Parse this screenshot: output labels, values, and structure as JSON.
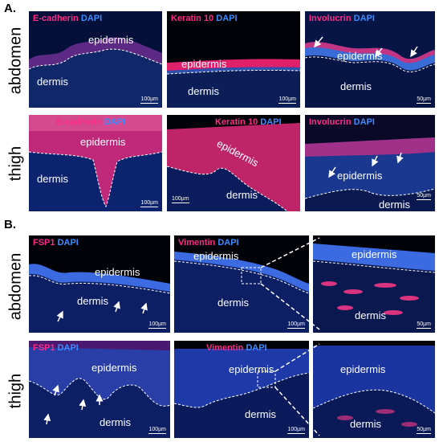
{
  "panel_a": {
    "label": "A.",
    "rows": [
      {
        "label": "abdomen",
        "tiles": [
          {
            "marker": "E-cadherin",
            "stain": "DAPI",
            "epidermis": "epidermis",
            "dermis": "dermis",
            "scale": "100µm"
          },
          {
            "marker": "Keratin 10",
            "stain": "DAPI",
            "epidermis": "epidermis",
            "dermis": "dermis",
            "scale": "100µm"
          },
          {
            "marker": "Involucrin",
            "stain": "DAPI",
            "epidermis": "epidermis",
            "dermis": "dermis",
            "scale": "50µm"
          }
        ]
      },
      {
        "label": "thigh",
        "tiles": [
          {
            "marker": "E-cadherin",
            "stain": "DAPI",
            "epidermis": "epidermis",
            "dermis": "dermis",
            "scale": "100µm"
          },
          {
            "marker": "Keratin 10",
            "stain": "DAPI",
            "epidermis": "epidermis",
            "dermis": "dermis",
            "scale": "100µm"
          },
          {
            "marker": "Involucrin",
            "stain": "DAPI",
            "epidermis": "epidermis",
            "dermis": "dermis",
            "scale": "50µm"
          }
        ]
      }
    ]
  },
  "panel_b": {
    "label": "B.",
    "rows": [
      {
        "label": "abdomen",
        "tiles": [
          {
            "marker": "FSP1",
            "stain": "DAPI",
            "epidermis": "epidermis",
            "dermis": "dermis",
            "scale": "100µm"
          },
          {
            "marker": "Vimentin",
            "stain": "DAPI",
            "epidermis": "epidermis",
            "dermis": "dermis",
            "scale": "100µm"
          },
          {
            "epidermis": "epidermis",
            "dermis": "dermis",
            "scale": "50µm"
          }
        ]
      },
      {
        "label": "thigh",
        "tiles": [
          {
            "marker": "FSP1",
            "stain": "DAPI",
            "epidermis": "epidermis",
            "dermis": "dermis",
            "scale": "100µm"
          },
          {
            "marker": "Vimentin",
            "stain": "DAPI",
            "epidermis": "epidermis",
            "dermis": "dermis",
            "scale": "100µm"
          },
          {
            "epidermis": "epidermis",
            "dermis": "dermis",
            "scale": "50µm"
          }
        ]
      }
    ]
  },
  "colors": {
    "marker": "#ff2a86",
    "dapi": "#3a8dff",
    "background": "#020724"
  }
}
